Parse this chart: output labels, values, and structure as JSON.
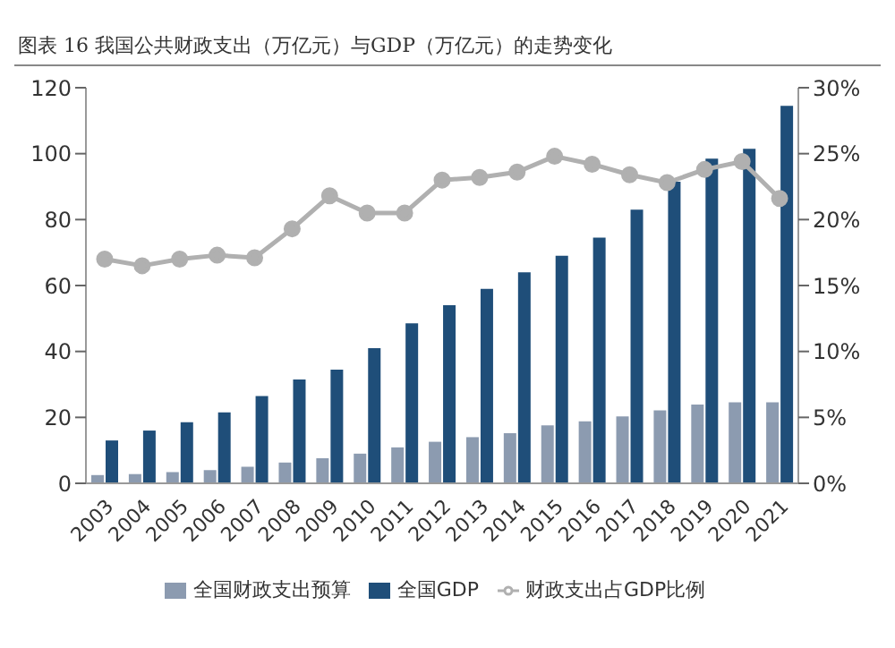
{
  "chart_data": {
    "type": "bar",
    "title": "图表 16 我国公共财政支出（万亿元）与GDP（万亿元）的走势变化",
    "categories": [
      "2003",
      "2004",
      "2005",
      "2006",
      "2007",
      "2008",
      "2009",
      "2010",
      "2011",
      "2012",
      "2013",
      "2014",
      "2015",
      "2016",
      "2017",
      "2018",
      "2019",
      "2020",
      "2021"
    ],
    "series": [
      {
        "name": "全国财政支出预算",
        "color": "#8c9bb0",
        "values": [
          2.5,
          2.8,
          3.4,
          4.0,
          5.0,
          6.3,
          7.6,
          9.0,
          10.9,
          12.6,
          14.0,
          15.2,
          17.6,
          18.8,
          20.3,
          22.1,
          23.9,
          24.6,
          24.6
        ]
      },
      {
        "name": "全国GDP",
        "color": "#1f4e79",
        "values": [
          13,
          16,
          18.5,
          21.5,
          26.5,
          31.5,
          34.5,
          41,
          48.5,
          54,
          59,
          64,
          69,
          74.5,
          83,
          91.5,
          98.5,
          101.5,
          114.5
        ]
      },
      {
        "name": "财政支出占GDP比例",
        "type": "line",
        "axis": "y2",
        "color": "#b0b0b0",
        "values": [
          17.0,
          16.5,
          17.0,
          17.3,
          17.1,
          19.3,
          21.8,
          20.5,
          20.5,
          23.0,
          23.2,
          23.6,
          24.8,
          24.2,
          23.4,
          22.8,
          23.8,
          24.4,
          21.6
        ]
      }
    ],
    "ylim": [
      0,
      120
    ],
    "yticks": [
      0,
      20,
      40,
      60,
      80,
      100,
      120
    ],
    "y2lim": [
      0,
      30
    ],
    "y2ticks": [
      {
        "value": 0,
        "label": "0%"
      },
      {
        "value": 5,
        "label": "5%"
      },
      {
        "value": 10,
        "label": "10%"
      },
      {
        "value": 15,
        "label": "15%"
      },
      {
        "value": 20,
        "label": "20%"
      },
      {
        "value": 25,
        "label": "25%"
      },
      {
        "value": 30,
        "label": "30%"
      }
    ],
    "legend": "bottom",
    "grid": false,
    "marker": "circle",
    "line_style": "solid"
  }
}
